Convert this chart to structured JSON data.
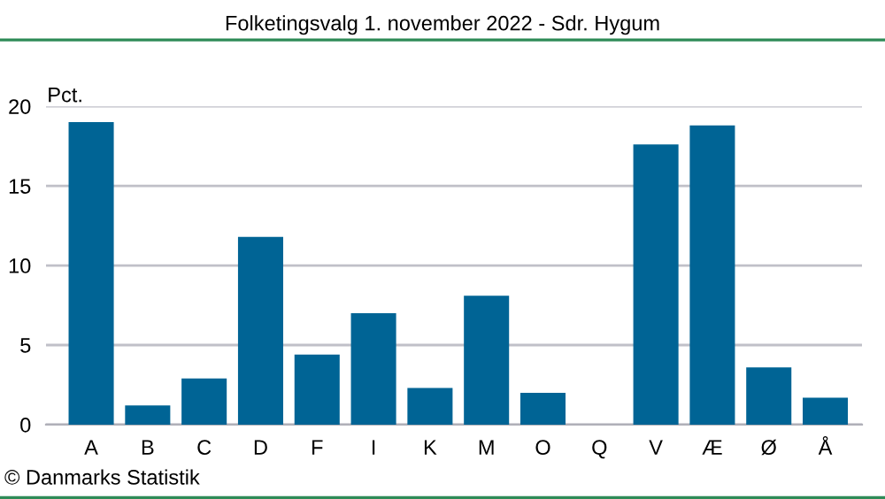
{
  "chart_data": {
    "type": "bar",
    "title": "Folketingsvalg 1. november 2022 - Sdr. Hygum",
    "ylabel": "Pct.",
    "categories": [
      "A",
      "B",
      "C",
      "D",
      "F",
      "I",
      "K",
      "M",
      "O",
      "Q",
      "V",
      "Æ",
      "Ø",
      "Å"
    ],
    "values": [
      19.0,
      1.2,
      2.9,
      11.8,
      4.4,
      7.0,
      2.3,
      8.1,
      2.0,
      0,
      17.6,
      18.8,
      3.6,
      1.7
    ],
    "color": "#006495",
    "ylim": [
      0,
      20
    ],
    "yticks": [
      0,
      5,
      10,
      15,
      20
    ],
    "grid": "y",
    "annotations": [
      "© Danmarks Statistik"
    ]
  }
}
